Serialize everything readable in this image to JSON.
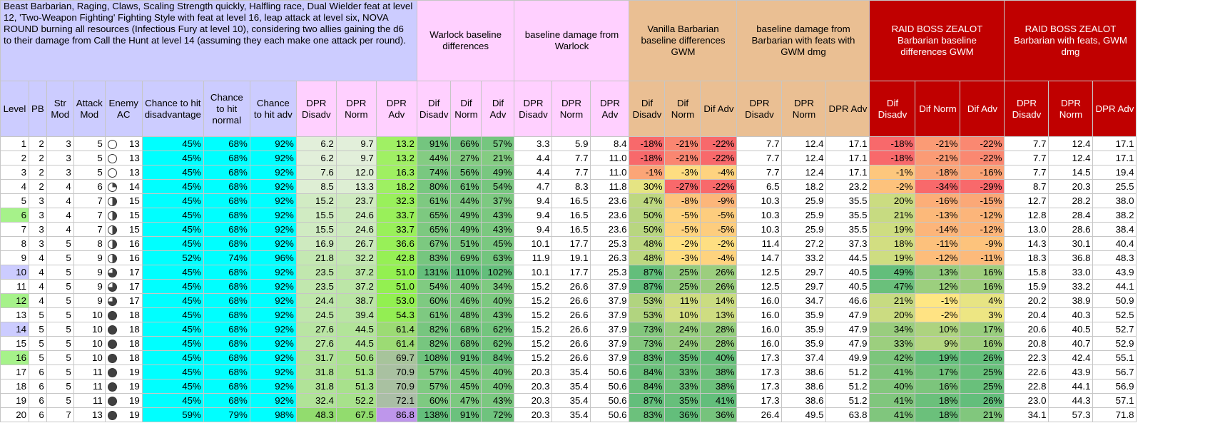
{
  "description_note": "Beast Barbarian, Raging, Claws, Scaling Strength quickly, Halfling race, Dual Wielder feat at level 12, 'Two-Weapon Fighting' Fighting Style with feat at level 16, leap attack at level six, NOVA ROUND burning all resources (Infectious Fury at level 10), considering two allies gaining the d6 to their damage from Call the Hunt at level 14 (assuming they each make one attack per round).",
  "groups": {
    "warlock_diff": "Warlock baseline differences",
    "warlock_base": "baseline damage from Warlock",
    "vanilla_diff": "Vanilla Barbarian baseline differences GWM",
    "vanilla_base": "baseline damage from Barbarian with feats with GWM dmg",
    "zealot_diff": "RAID BOSS ZEALOT Barbarian baseline differences GWM",
    "zealot_base": "RAID BOSS ZEALOT Barbarian with feats, GWM dmg"
  },
  "columns": [
    "Level",
    "PB",
    "Str Mod",
    "Attack Mod",
    "Enemy AC",
    "Chance to hit disadvantage",
    "Chance to hit normal",
    "Chance to hit adv",
    "DPR Disadv",
    "DPR Norm",
    "DPR Adv",
    "Dif Disadv",
    "Dif Norm",
    "Dif Adv",
    "DPR Disadv",
    "DPR Norm",
    "DPR Adv",
    "Dif Disadv",
    "Dif Norm",
    "Dif Adv",
    "DPR Disadv",
    "DPR Norm",
    "DPR Adv",
    "Dif Disadv",
    "Dif Norm",
    "Dif Adv",
    "DPR Disadv",
    "DPR Norm",
    "DPR Adv"
  ],
  "colors": {
    "lavender": "#ccccff",
    "cyan": "#00ffff",
    "pink": "#ffd0ff",
    "tan": "#eabf93",
    "red": "#c00000",
    "level_green": "#a6f28a"
  },
  "rows": [
    [
      "1",
      "2",
      "3",
      "5",
      "13",
      "45%",
      "68%",
      "92%",
      "6.2",
      "9.7",
      "13.2",
      "91%",
      "66%",
      "57%",
      "3.3",
      "5.9",
      "8.4",
      "-18%",
      "-21%",
      "-22%",
      "7.7",
      "12.4",
      "17.1",
      "-18%",
      "-21%",
      "-22%",
      "7.7",
      "12.4",
      "17.1"
    ],
    [
      "2",
      "2",
      "3",
      "5",
      "13",
      "45%",
      "68%",
      "92%",
      "6.2",
      "9.7",
      "13.2",
      "44%",
      "27%",
      "21%",
      "4.4",
      "7.7",
      "11.0",
      "-18%",
      "-21%",
      "-22%",
      "7.7",
      "12.4",
      "17.1",
      "-18%",
      "-21%",
      "-22%",
      "7.7",
      "12.4",
      "17.1"
    ],
    [
      "3",
      "2",
      "3",
      "5",
      "13",
      "45%",
      "68%",
      "92%",
      "7.6",
      "12.0",
      "16.3",
      "74%",
      "56%",
      "49%",
      "4.4",
      "7.7",
      "11.0",
      "-1%",
      "-3%",
      "-4%",
      "7.7",
      "12.4",
      "17.1",
      "-1%",
      "-18%",
      "-16%",
      "7.7",
      "14.5",
      "19.4"
    ],
    [
      "4",
      "2",
      "4",
      "6",
      "14",
      "45%",
      "68%",
      "92%",
      "8.5",
      "13.3",
      "18.2",
      "80%",
      "61%",
      "54%",
      "4.7",
      "8.3",
      "11.8",
      "30%",
      "-27%",
      "-22%",
      "6.5",
      "18.2",
      "23.2",
      "-2%",
      "-34%",
      "-29%",
      "8.7",
      "20.3",
      "25.5"
    ],
    [
      "5",
      "3",
      "4",
      "7",
      "15",
      "45%",
      "68%",
      "92%",
      "15.2",
      "23.7",
      "32.3",
      "61%",
      "44%",
      "37%",
      "9.4",
      "16.5",
      "23.6",
      "47%",
      "-8%",
      "-9%",
      "10.3",
      "25.9",
      "35.5",
      "20%",
      "-16%",
      "-15%",
      "12.7",
      "28.2",
      "38.0"
    ],
    [
      "6",
      "3",
      "4",
      "7",
      "15",
      "45%",
      "68%",
      "92%",
      "15.5",
      "24.6",
      "33.7",
      "65%",
      "49%",
      "43%",
      "9.4",
      "16.5",
      "23.6",
      "50%",
      "-5%",
      "-5%",
      "10.3",
      "25.9",
      "35.5",
      "21%",
      "-13%",
      "-12%",
      "12.8",
      "28.4",
      "38.2"
    ],
    [
      "7",
      "3",
      "4",
      "7",
      "15",
      "45%",
      "68%",
      "92%",
      "15.5",
      "24.6",
      "33.7",
      "65%",
      "49%",
      "43%",
      "9.4",
      "16.5",
      "23.6",
      "50%",
      "-5%",
      "-5%",
      "10.3",
      "25.9",
      "35.5",
      "19%",
      "-14%",
      "-12%",
      "13.0",
      "28.6",
      "38.4"
    ],
    [
      "8",
      "3",
      "5",
      "8",
      "16",
      "45%",
      "68%",
      "92%",
      "16.9",
      "26.7",
      "36.6",
      "67%",
      "51%",
      "45%",
      "10.1",
      "17.7",
      "25.3",
      "48%",
      "-2%",
      "-2%",
      "11.4",
      "27.2",
      "37.3",
      "18%",
      "-11%",
      "-9%",
      "14.3",
      "30.1",
      "40.4"
    ],
    [
      "9",
      "4",
      "5",
      "9",
      "16",
      "52%",
      "74%",
      "96%",
      "21.8",
      "32.2",
      "42.8",
      "83%",
      "69%",
      "63%",
      "11.9",
      "19.1",
      "26.3",
      "48%",
      "-3%",
      "-4%",
      "14.7",
      "33.2",
      "44.5",
      "19%",
      "-12%",
      "-11%",
      "18.3",
      "36.8",
      "48.3"
    ],
    [
      "10",
      "4",
      "5",
      "9",
      "17",
      "45%",
      "68%",
      "92%",
      "23.5",
      "37.2",
      "51.0",
      "131%",
      "110%",
      "102%",
      "10.1",
      "17.7",
      "25.3",
      "87%",
      "25%",
      "26%",
      "12.5",
      "29.7",
      "40.5",
      "49%",
      "13%",
      "16%",
      "15.8",
      "33.0",
      "43.9"
    ],
    [
      "11",
      "4",
      "5",
      "9",
      "17",
      "45%",
      "68%",
      "92%",
      "23.5",
      "37.2",
      "51.0",
      "54%",
      "40%",
      "34%",
      "15.2",
      "26.6",
      "37.9",
      "87%",
      "25%",
      "26%",
      "12.5",
      "29.7",
      "40.5",
      "47%",
      "12%",
      "16%",
      "15.9",
      "33.2",
      "44.1"
    ],
    [
      "12",
      "4",
      "5",
      "9",
      "17",
      "45%",
      "68%",
      "92%",
      "24.4",
      "38.7",
      "53.0",
      "60%",
      "46%",
      "40%",
      "15.2",
      "26.6",
      "37.9",
      "53%",
      "11%",
      "14%",
      "16.0",
      "34.7",
      "46.6",
      "21%",
      "-1%",
      "4%",
      "20.2",
      "38.9",
      "50.9"
    ],
    [
      "13",
      "5",
      "5",
      "10",
      "18",
      "45%",
      "68%",
      "92%",
      "24.5",
      "39.4",
      "54.3",
      "61%",
      "48%",
      "43%",
      "15.2",
      "26.6",
      "37.9",
      "53%",
      "10%",
      "13%",
      "16.0",
      "35.9",
      "47.9",
      "20%",
      "-2%",
      "3%",
      "20.4",
      "40.3",
      "52.5"
    ],
    [
      "14",
      "5",
      "5",
      "10",
      "18",
      "45%",
      "68%",
      "92%",
      "27.6",
      "44.5",
      "61.4",
      "82%",
      "68%",
      "62%",
      "15.2",
      "26.6",
      "37.9",
      "73%",
      "24%",
      "28%",
      "16.0",
      "35.9",
      "47.9",
      "34%",
      "10%",
      "17%",
      "20.6",
      "40.5",
      "52.7"
    ],
    [
      "15",
      "5",
      "5",
      "10",
      "18",
      "45%",
      "68%",
      "92%",
      "27.6",
      "44.5",
      "61.4",
      "82%",
      "68%",
      "62%",
      "15.2",
      "26.6",
      "37.9",
      "73%",
      "24%",
      "28%",
      "16.0",
      "35.9",
      "47.9",
      "33%",
      "9%",
      "16%",
      "20.8",
      "40.7",
      "52.9"
    ],
    [
      "16",
      "5",
      "5",
      "10",
      "18",
      "45%",
      "68%",
      "92%",
      "31.7",
      "50.6",
      "69.7",
      "108%",
      "91%",
      "84%",
      "15.2",
      "26.6",
      "37.9",
      "83%",
      "35%",
      "40%",
      "17.3",
      "37.4",
      "49.9",
      "42%",
      "19%",
      "26%",
      "22.3",
      "42.4",
      "55.1"
    ],
    [
      "17",
      "6",
      "5",
      "11",
      "19",
      "45%",
      "68%",
      "92%",
      "31.8",
      "51.3",
      "70.9",
      "57%",
      "45%",
      "40%",
      "20.3",
      "35.4",
      "50.6",
      "84%",
      "33%",
      "38%",
      "17.3",
      "38.6",
      "51.2",
      "41%",
      "17%",
      "25%",
      "22.6",
      "43.9",
      "56.7"
    ],
    [
      "18",
      "6",
      "5",
      "11",
      "19",
      "45%",
      "68%",
      "92%",
      "31.8",
      "51.3",
      "70.9",
      "57%",
      "45%",
      "40%",
      "20.3",
      "35.4",
      "50.6",
      "84%",
      "33%",
      "38%",
      "17.3",
      "38.6",
      "51.2",
      "40%",
      "16%",
      "25%",
      "22.8",
      "44.1",
      "56.9"
    ],
    [
      "19",
      "6",
      "5",
      "11",
      "19",
      "45%",
      "68%",
      "92%",
      "32.4",
      "52.2",
      "72.1",
      "60%",
      "47%",
      "43%",
      "20.3",
      "35.4",
      "50.6",
      "87%",
      "35%",
      "41%",
      "17.3",
      "38.6",
      "51.2",
      "41%",
      "18%",
      "26%",
      "23.0",
      "44.3",
      "57.1"
    ],
    [
      "20",
      "6",
      "7",
      "13",
      "19",
      "59%",
      "79%",
      "98%",
      "48.3",
      "67.5",
      "86.8",
      "138%",
      "91%",
      "72%",
      "20.3",
      "35.4",
      "50.6",
      "83%",
      "36%",
      "36%",
      "26.4",
      "49.5",
      "63.8",
      "41%",
      "18%",
      "21%",
      "34.1",
      "57.3",
      "71.8"
    ]
  ]
}
